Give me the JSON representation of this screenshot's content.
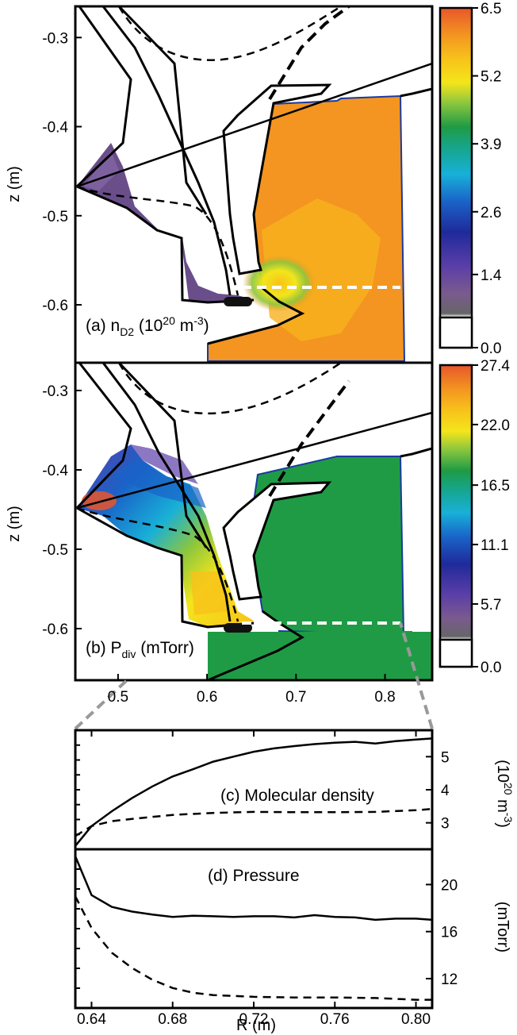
{
  "panel_a": {
    "label": "(a) n",
    "sub": "D2",
    "units_pre": " (10",
    "units_sup": "20",
    "units_mid": " m",
    "units_sup2": "-3",
    "units_post": ")"
  },
  "panel_b": {
    "label": "(b) P",
    "sub": "div",
    "units": " (mTorr)"
  },
  "panel_c": {
    "label": "(c) Molecular density",
    "ylabel_pre": "(10",
    "ylabel_sup": "20",
    "ylabel_mid": " m",
    "ylabel_sup2": "-3",
    "ylabel_post": ")"
  },
  "panel_d": {
    "label": "(d) Pressure",
    "ylabel": "(mTorr)"
  },
  "zlabel": "z (m)",
  "xlabel": "R (m)",
  "colors": {
    "fill_a": "#f39520",
    "fill_b": "#1f9b45",
    "cb_low": "#ffffff",
    "cb_gray": "#5a5a5a"
  },
  "chart_data": [
    {
      "type": "heatmap",
      "name": "panel-a",
      "ylim": [
        -0.665,
        -0.265
      ],
      "z_ticks": [
        "-0.3",
        "-0.4",
        "-0.5",
        "-0.6"
      ],
      "colorbar_ticks": [
        "6.5",
        "5.2",
        "3.9",
        "2.6",
        "1.4",
        "0.0"
      ],
      "colorbar_range": [
        0.0,
        6.5
      ]
    },
    {
      "type": "heatmap",
      "name": "panel-b",
      "xlim": [
        0.452,
        0.853
      ],
      "ylim": [
        -0.665,
        -0.265
      ],
      "x_ticks": [
        "0.5",
        "0.6",
        "0.7",
        "0.8"
      ],
      "z_ticks": [
        "-0.3",
        "-0.4",
        "-0.5",
        "-0.6"
      ],
      "colorbar_ticks": [
        "27.4",
        "22.0",
        "16.5",
        "11.1",
        "5.7",
        "0.0"
      ],
      "colorbar_range": [
        0.0,
        27.4
      ]
    },
    {
      "type": "line",
      "name": "molecular-density",
      "xlim": [
        0.632,
        0.808
      ],
      "ylim": [
        2.2,
        5.8
      ],
      "y_ticks": [
        "5",
        "4",
        "3"
      ],
      "series": [
        {
          "style": "solid",
          "x": [
            0.632,
            0.64,
            0.65,
            0.66,
            0.67,
            0.68,
            0.69,
            0.7,
            0.71,
            0.72,
            0.73,
            0.74,
            0.75,
            0.76,
            0.77,
            0.78,
            0.79,
            0.8,
            0.808
          ],
          "values": [
            2.3,
            2.9,
            3.35,
            3.75,
            4.1,
            4.4,
            4.62,
            4.85,
            5.0,
            5.15,
            5.25,
            5.32,
            5.38,
            5.42,
            5.45,
            5.4,
            5.47,
            5.52,
            5.55
          ]
        },
        {
          "style": "dashed",
          "x": [
            0.632,
            0.64,
            0.65,
            0.66,
            0.67,
            0.68,
            0.7,
            0.72,
            0.74,
            0.76,
            0.78,
            0.8,
            0.808
          ],
          "values": [
            2.6,
            2.9,
            3.05,
            3.12,
            3.18,
            3.24,
            3.3,
            3.33,
            3.32,
            3.32,
            3.33,
            3.38,
            3.42
          ]
        }
      ]
    },
    {
      "type": "line",
      "name": "pressure",
      "xlim": [
        0.632,
        0.808
      ],
      "ylim": [
        9.5,
        23.0
      ],
      "x_ticks": [
        "0.64",
        "0.68",
        "0.72",
        "0.76",
        "0.80"
      ],
      "y_ticks": [
        "20",
        "16",
        "12"
      ],
      "series": [
        {
          "style": "solid",
          "x": [
            0.632,
            0.64,
            0.65,
            0.66,
            0.67,
            0.68,
            0.69,
            0.7,
            0.71,
            0.72,
            0.73,
            0.74,
            0.75,
            0.76,
            0.77,
            0.78,
            0.79,
            0.8,
            0.808
          ],
          "values": [
            22.4,
            19.1,
            18.1,
            17.7,
            17.45,
            17.25,
            17.35,
            17.3,
            17.25,
            17.3,
            17.3,
            17.2,
            17.4,
            17.25,
            17.2,
            17.0,
            17.1,
            17.1,
            17.0
          ]
        },
        {
          "style": "dashed",
          "x": [
            0.632,
            0.64,
            0.65,
            0.66,
            0.67,
            0.68,
            0.69,
            0.7,
            0.72,
            0.74,
            0.76,
            0.78,
            0.8,
            0.808
          ],
          "values": [
            19.0,
            16.3,
            14.2,
            12.9,
            11.9,
            11.2,
            10.8,
            10.6,
            10.45,
            10.4,
            10.4,
            10.35,
            10.2,
            10.2
          ]
        }
      ]
    }
  ]
}
